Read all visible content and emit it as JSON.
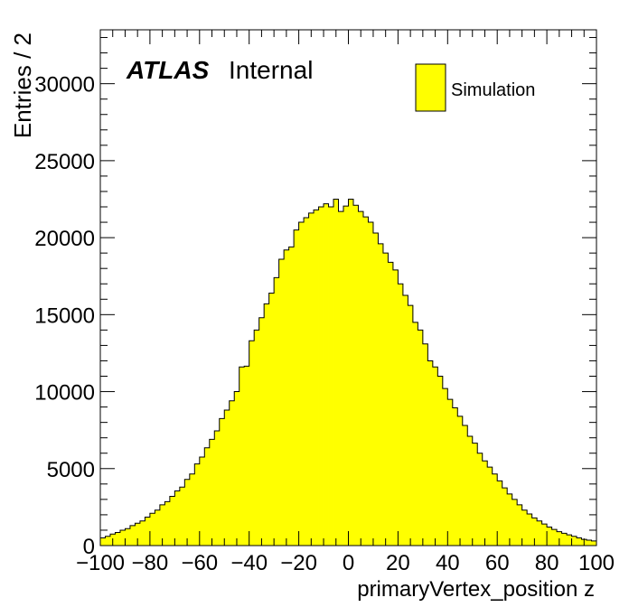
{
  "chart_data": {
    "type": "bar",
    "title": "",
    "xlabel": "primaryVertex_position z",
    "ylabel": "Entries / 2",
    "xlim": [
      -100,
      100
    ],
    "ylim": [
      0,
      33500
    ],
    "x_ticks": [
      -100,
      -80,
      -60,
      -40,
      -20,
      0,
      20,
      40,
      60,
      80,
      100
    ],
    "x_tick_labels": [
      "−100",
      "−80",
      "−60",
      "−40",
      "−20",
      "0",
      "20",
      "40",
      "60",
      "80",
      "100"
    ],
    "y_ticks": [
      0,
      5000,
      10000,
      15000,
      20000,
      25000,
      30000
    ],
    "y_tick_labels": [
      "0",
      "5000",
      "10000",
      "15000",
      "20000",
      "25000",
      "30000"
    ],
    "bin_width": 2,
    "grid": false,
    "legend_position": "top-right",
    "annotation": {
      "bold_italic": "ATLAS",
      "regular": "Internal"
    },
    "series": [
      {
        "name": "Simulation",
        "color": "#ffff00",
        "edge_color": "#000000",
        "bin_low_edges": [
          -100,
          -98,
          -96,
          -94,
          -92,
          -90,
          -88,
          -86,
          -84,
          -82,
          -80,
          -78,
          -76,
          -74,
          -72,
          -70,
          -68,
          -66,
          -64,
          -62,
          -60,
          -58,
          -56,
          -54,
          -52,
          -50,
          -48,
          -46,
          -44,
          -42,
          -40,
          -38,
          -36,
          -34,
          -32,
          -30,
          -28,
          -26,
          -24,
          -22,
          -20,
          -18,
          -16,
          -14,
          -12,
          -10,
          -8,
          -6,
          -4,
          -2,
          0,
          2,
          4,
          6,
          8,
          10,
          12,
          14,
          16,
          18,
          20,
          22,
          24,
          26,
          28,
          30,
          32,
          34,
          36,
          38,
          40,
          42,
          44,
          46,
          48,
          50,
          52,
          54,
          56,
          58,
          60,
          62,
          64,
          66,
          68,
          70,
          72,
          74,
          76,
          78,
          80,
          82,
          84,
          86,
          88,
          90,
          92,
          94,
          96,
          98
        ],
        "values": [
          500,
          600,
          750,
          850,
          1000,
          1100,
          1300,
          1450,
          1600,
          1850,
          2100,
          2300,
          2650,
          2850,
          3200,
          3550,
          3800,
          4300,
          4650,
          5300,
          5750,
          6350,
          6900,
          7450,
          8250,
          8800,
          9400,
          10000,
          11600,
          11650,
          13300,
          14000,
          14800,
          15700,
          16400,
          17400,
          18600,
          19200,
          19400,
          20500,
          21000,
          21300,
          21600,
          21800,
          22000,
          22200,
          22000,
          22500,
          21700,
          22050,
          22500,
          22100,
          21700,
          21350,
          21000,
          20300,
          19600,
          19000,
          18400,
          17900,
          17000,
          16250,
          15600,
          14500,
          14000,
          13100,
          12000,
          11600,
          11000,
          10200,
          9500,
          8950,
          8400,
          7800,
          7100,
          6650,
          6000,
          5500,
          5100,
          4650,
          4200,
          3750,
          3350,
          3000,
          2650,
          2300,
          2050,
          1800,
          1600,
          1400,
          1200,
          1050,
          900,
          800,
          700,
          600,
          500,
          400,
          350,
          300
        ]
      }
    ]
  }
}
